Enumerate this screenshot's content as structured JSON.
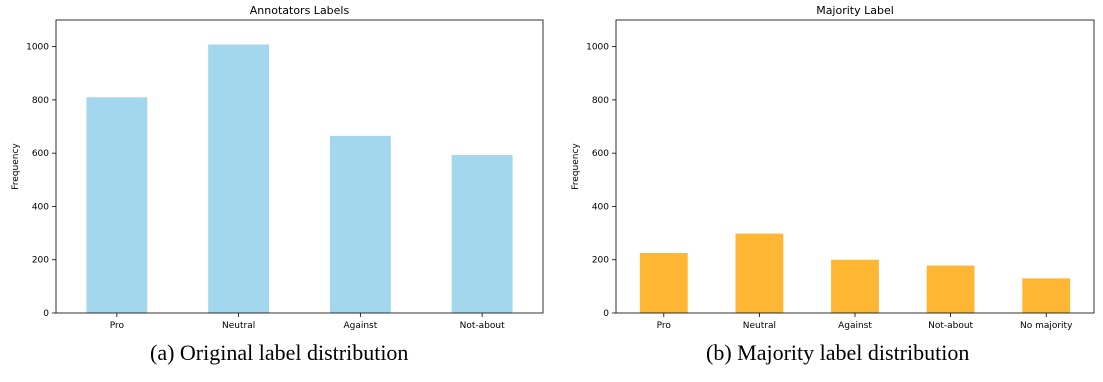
{
  "chart_data": [
    {
      "type": "bar",
      "title": "Annotators Labels",
      "xlabel": "",
      "ylabel": "Frequency",
      "categories": [
        "Pro",
        "Neutral",
        "Against",
        "Not-about"
      ],
      "values": [
        810,
        1008,
        665,
        593
      ],
      "ylim": [
        0,
        1100
      ],
      "yticks": [
        0,
        200,
        400,
        600,
        800,
        1000
      ],
      "color": "#a2d7ed",
      "grid": false,
      "legend": "none"
    },
    {
      "type": "bar",
      "title": "Majority Label",
      "xlabel": "",
      "ylabel": "Frequency",
      "categories": [
        "Pro",
        "Neutral",
        "Against",
        "Not-about",
        "No majority"
      ],
      "values": [
        225,
        298,
        200,
        178,
        130
      ],
      "ylim": [
        0,
        1100
      ],
      "yticks": [
        0,
        200,
        400,
        600,
        800,
        1000
      ],
      "color": "#ffb733",
      "grid": false,
      "legend": "none"
    }
  ],
  "captions": {
    "a": "(a) Original label distribution",
    "b": "(b) Majority label distribution"
  }
}
